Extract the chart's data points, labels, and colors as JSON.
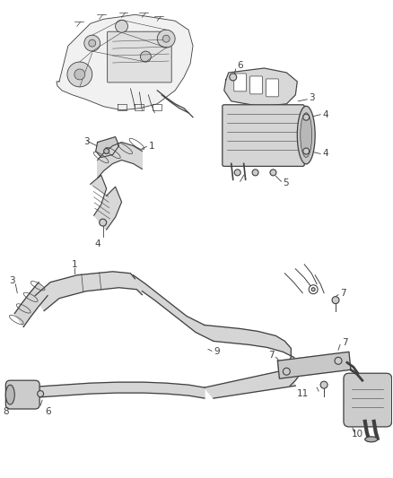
{
  "bg_color": "#ffffff",
  "line_color": "#404040",
  "fig_width": 4.38,
  "fig_height": 5.33,
  "dpi": 100,
  "fill_color": "#e8e8e8",
  "fill_dark": "#cccccc",
  "fill_mid": "#d8d8d8"
}
